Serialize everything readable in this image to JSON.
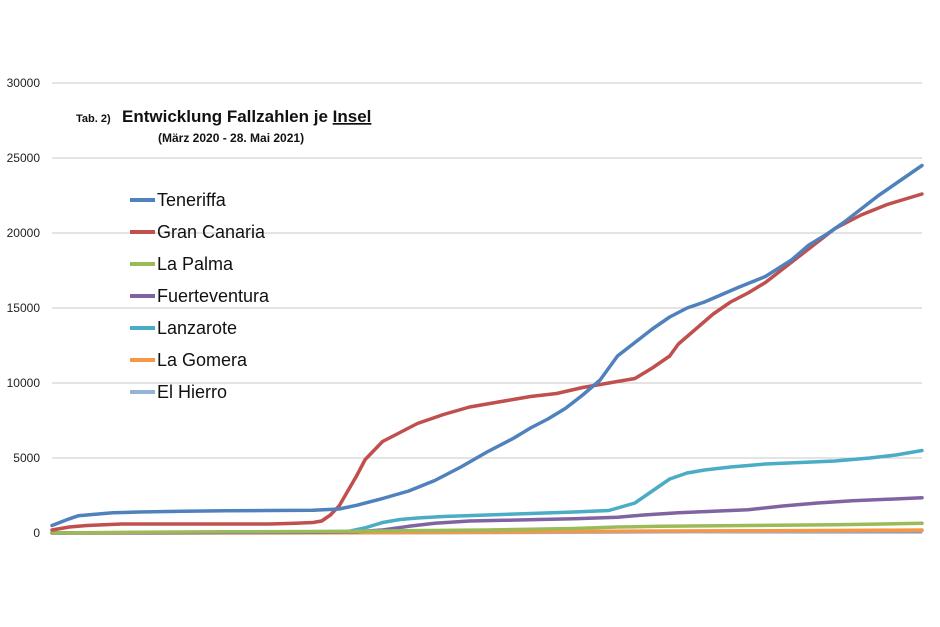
{
  "chart_data": {
    "type": "line",
    "title_prefix": "Tab. 2)",
    "title_main": "Entwicklung Fallzahlen je ",
    "title_underlined": "Insel",
    "subtitle": "(März 2020 - 28. Mai 2021)",
    "xlabel": "",
    "ylabel": "",
    "ylim": [
      0,
      30000
    ],
    "yticks": [
      "0",
      "5000",
      "10000",
      "15000",
      "20000",
      "25000",
      "30000"
    ],
    "grid": true,
    "legend_position": "upper-left",
    "x_range": [
      0,
      100
    ],
    "series": [
      {
        "name": "Teneriffa",
        "color": "#4f81bd",
        "points": [
          [
            0,
            500
          ],
          [
            2,
            950
          ],
          [
            3,
            1150
          ],
          [
            5,
            1250
          ],
          [
            7,
            1350
          ],
          [
            10,
            1400
          ],
          [
            15,
            1450
          ],
          [
            20,
            1480
          ],
          [
            25,
            1500
          ],
          [
            30,
            1520
          ],
          [
            33,
            1600
          ],
          [
            35,
            1850
          ],
          [
            38,
            2300
          ],
          [
            41,
            2800
          ],
          [
            44,
            3500
          ],
          [
            47,
            4400
          ],
          [
            50,
            5400
          ],
          [
            53,
            6300
          ],
          [
            55,
            7000
          ],
          [
            57,
            7600
          ],
          [
            59,
            8300
          ],
          [
            61,
            9200
          ],
          [
            63,
            10200
          ],
          [
            64,
            11000
          ],
          [
            65,
            11800
          ],
          [
            67,
            12700
          ],
          [
            69,
            13600
          ],
          [
            71,
            14400
          ],
          [
            73,
            15000
          ],
          [
            75,
            15400
          ],
          [
            77,
            15900
          ],
          [
            79,
            16400
          ],
          [
            82,
            17100
          ],
          [
            85,
            18200
          ],
          [
            87,
            19200
          ],
          [
            89,
            19900
          ],
          [
            91,
            20700
          ],
          [
            93,
            21600
          ],
          [
            95,
            22500
          ],
          [
            97,
            23300
          ],
          [
            100,
            24500
          ]
        ]
      },
      {
        "name": "Gran Canaria",
        "color": "#c0504d",
        "points": [
          [
            0,
            200
          ],
          [
            2,
            400
          ],
          [
            4,
            500
          ],
          [
            6,
            550
          ],
          [
            8,
            600
          ],
          [
            15,
            600
          ],
          [
            25,
            600
          ],
          [
            28,
            650
          ],
          [
            30,
            700
          ],
          [
            31,
            800
          ],
          [
            32,
            1200
          ],
          [
            33,
            1800
          ],
          [
            34,
            2800
          ],
          [
            35,
            3800
          ],
          [
            36,
            4900
          ],
          [
            37,
            5500
          ],
          [
            38,
            6100
          ],
          [
            40,
            6700
          ],
          [
            42,
            7300
          ],
          [
            45,
            7900
          ],
          [
            48,
            8400
          ],
          [
            50,
            8600
          ],
          [
            53,
            8900
          ],
          [
            55,
            9100
          ],
          [
            58,
            9300
          ],
          [
            61,
            9700
          ],
          [
            64,
            10000
          ],
          [
            67,
            10300
          ],
          [
            69,
            11000
          ],
          [
            71,
            11800
          ],
          [
            72,
            12600
          ],
          [
            74,
            13600
          ],
          [
            76,
            14600
          ],
          [
            78,
            15400
          ],
          [
            80,
            16000
          ],
          [
            82,
            16700
          ],
          [
            84,
            17600
          ],
          [
            86,
            18500
          ],
          [
            88,
            19400
          ],
          [
            90,
            20300
          ],
          [
            93,
            21200
          ],
          [
            96,
            21900
          ],
          [
            100,
            22600
          ]
        ]
      },
      {
        "name": "La Palma",
        "color": "#9bbb59",
        "points": [
          [
            0,
            0
          ],
          [
            10,
            50
          ],
          [
            20,
            80
          ],
          [
            30,
            100
          ],
          [
            35,
            120
          ],
          [
            40,
            150
          ],
          [
            50,
            200
          ],
          [
            55,
            250
          ],
          [
            60,
            300
          ],
          [
            65,
            400
          ],
          [
            70,
            450
          ],
          [
            80,
            500
          ],
          [
            90,
            550
          ],
          [
            100,
            650
          ]
        ]
      },
      {
        "name": "Fuerteventura",
        "color": "#8064a2",
        "points": [
          [
            0,
            0
          ],
          [
            10,
            20
          ],
          [
            20,
            40
          ],
          [
            30,
            50
          ],
          [
            35,
            80
          ],
          [
            38,
            200
          ],
          [
            41,
            450
          ],
          [
            44,
            650
          ],
          [
            48,
            800
          ],
          [
            52,
            850
          ],
          [
            56,
            900
          ],
          [
            60,
            950
          ],
          [
            65,
            1050
          ],
          [
            68,
            1200
          ],
          [
            72,
            1350
          ],
          [
            76,
            1450
          ],
          [
            80,
            1550
          ],
          [
            84,
            1800
          ],
          [
            88,
            2000
          ],
          [
            92,
            2150
          ],
          [
            96,
            2250
          ],
          [
            100,
            2350
          ]
        ]
      },
      {
        "name": "Lanzarote",
        "color": "#4bacc6",
        "points": [
          [
            0,
            0
          ],
          [
            10,
            30
          ],
          [
            20,
            50
          ],
          [
            30,
            60
          ],
          [
            34,
            100
          ],
          [
            36,
            350
          ],
          [
            38,
            700
          ],
          [
            40,
            900
          ],
          [
            42,
            1000
          ],
          [
            45,
            1100
          ],
          [
            50,
            1200
          ],
          [
            55,
            1300
          ],
          [
            60,
            1400
          ],
          [
            64,
            1500
          ],
          [
            67,
            2000
          ],
          [
            69,
            2800
          ],
          [
            71,
            3600
          ],
          [
            73,
            4000
          ],
          [
            75,
            4200
          ],
          [
            78,
            4400
          ],
          [
            82,
            4600
          ],
          [
            86,
            4700
          ],
          [
            90,
            4800
          ],
          [
            94,
            5000
          ],
          [
            97,
            5200
          ],
          [
            100,
            5500
          ]
        ]
      },
      {
        "name": "La Gomera",
        "color": "#f79646",
        "points": [
          [
            0,
            0
          ],
          [
            20,
            10
          ],
          [
            35,
            20
          ],
          [
            50,
            60
          ],
          [
            60,
            100
          ],
          [
            70,
            130
          ],
          [
            80,
            150
          ],
          [
            90,
            170
          ],
          [
            100,
            200
          ]
        ]
      },
      {
        "name": "El Hierro",
        "color": "#95b3d7",
        "points": [
          [
            0,
            0
          ],
          [
            20,
            5
          ],
          [
            40,
            20
          ],
          [
            60,
            50
          ],
          [
            80,
            100
          ],
          [
            100,
            150
          ]
        ]
      }
    ]
  }
}
